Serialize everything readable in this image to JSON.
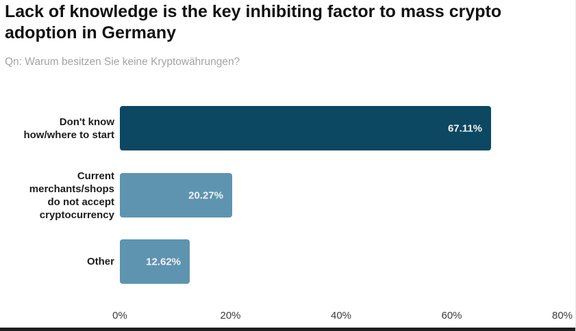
{
  "page": {
    "title": "Lack of knowledge is the key inhibiting factor to mass crypto adoption in Germany",
    "subtitle": "Qn: Warum besitzen Sie keine Kryptowährungen?"
  },
  "colors": {
    "bar_primary": "#0c4861",
    "bar_secondary": "#5e94b0",
    "value_label": "#f2f2f2",
    "title_text": "#111111",
    "subtitle_text": "#a3a3a3",
    "tick_text": "#3a3a3a",
    "footer_strip": "#1e1e1e"
  },
  "chart_data": {
    "type": "bar",
    "orientation": "horizontal",
    "title": "Lack of knowledge is the key inhibiting factor to mass crypto adoption in Germany",
    "subtitle": "Qn: Warum besitzen Sie keine Kryptowährungen?",
    "categories": [
      "Don't know how/where to start",
      "Current merchants/shops do not accept cryptocurrency",
      "Other"
    ],
    "category_label_lines": [
      [
        "Don't know",
        "how/where to start"
      ],
      [
        "Current",
        "merchants/shops",
        "do not accept",
        "cryptocurrency"
      ],
      [
        "Other"
      ]
    ],
    "values": [
      67.11,
      20.27,
      12.62
    ],
    "value_labels": [
      "67.11%",
      "20.27%",
      "12.62%"
    ],
    "bar_colors": [
      "#0c4861",
      "#5e94b0",
      "#5e94b0"
    ],
    "x_ticks": [
      {
        "value": 0,
        "label": "0%"
      },
      {
        "value": 20,
        "label": "20%"
      },
      {
        "value": 40,
        "label": "40%"
      },
      {
        "value": 60,
        "label": "60%"
      },
      {
        "value": 80,
        "label": "80%"
      }
    ],
    "xlim": [
      0,
      80
    ],
    "grid": false,
    "legend": false
  }
}
